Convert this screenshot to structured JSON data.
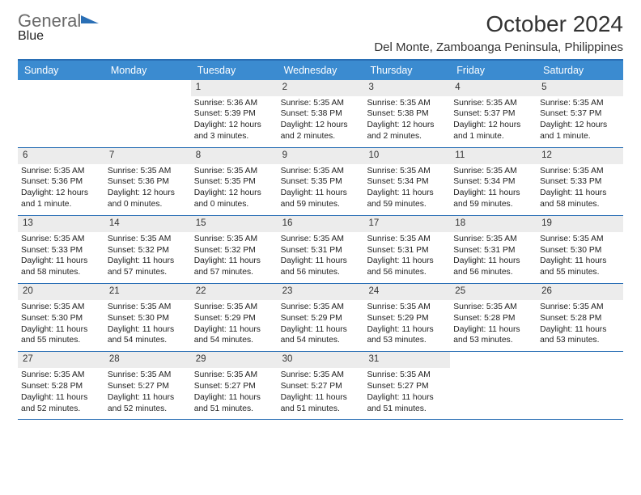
{
  "brand": {
    "name1": "General",
    "name2": "Blue"
  },
  "title": "October 2024",
  "location": "Del Monte, Zamboanga Peninsula, Philippines",
  "colors": {
    "accent": "#3b8bd0",
    "border": "#2a6fb5",
    "shade": "#ececec"
  },
  "dow": [
    "Sunday",
    "Monday",
    "Tuesday",
    "Wednesday",
    "Thursday",
    "Friday",
    "Saturday"
  ],
  "weeks": [
    [
      null,
      null,
      {
        "n": "1",
        "l1": "Sunrise: 5:36 AM",
        "l2": "Sunset: 5:39 PM",
        "l3": "Daylight: 12 hours",
        "l4": "and 3 minutes."
      },
      {
        "n": "2",
        "l1": "Sunrise: 5:35 AM",
        "l2": "Sunset: 5:38 PM",
        "l3": "Daylight: 12 hours",
        "l4": "and 2 minutes."
      },
      {
        "n": "3",
        "l1": "Sunrise: 5:35 AM",
        "l2": "Sunset: 5:38 PM",
        "l3": "Daylight: 12 hours",
        "l4": "and 2 minutes."
      },
      {
        "n": "4",
        "l1": "Sunrise: 5:35 AM",
        "l2": "Sunset: 5:37 PM",
        "l3": "Daylight: 12 hours",
        "l4": "and 1 minute."
      },
      {
        "n": "5",
        "l1": "Sunrise: 5:35 AM",
        "l2": "Sunset: 5:37 PM",
        "l3": "Daylight: 12 hours",
        "l4": "and 1 minute."
      }
    ],
    [
      {
        "n": "6",
        "l1": "Sunrise: 5:35 AM",
        "l2": "Sunset: 5:36 PM",
        "l3": "Daylight: 12 hours",
        "l4": "and 1 minute."
      },
      {
        "n": "7",
        "l1": "Sunrise: 5:35 AM",
        "l2": "Sunset: 5:36 PM",
        "l3": "Daylight: 12 hours",
        "l4": "and 0 minutes."
      },
      {
        "n": "8",
        "l1": "Sunrise: 5:35 AM",
        "l2": "Sunset: 5:35 PM",
        "l3": "Daylight: 12 hours",
        "l4": "and 0 minutes."
      },
      {
        "n": "9",
        "l1": "Sunrise: 5:35 AM",
        "l2": "Sunset: 5:35 PM",
        "l3": "Daylight: 11 hours",
        "l4": "and 59 minutes."
      },
      {
        "n": "10",
        "l1": "Sunrise: 5:35 AM",
        "l2": "Sunset: 5:34 PM",
        "l3": "Daylight: 11 hours",
        "l4": "and 59 minutes."
      },
      {
        "n": "11",
        "l1": "Sunrise: 5:35 AM",
        "l2": "Sunset: 5:34 PM",
        "l3": "Daylight: 11 hours",
        "l4": "and 59 minutes."
      },
      {
        "n": "12",
        "l1": "Sunrise: 5:35 AM",
        "l2": "Sunset: 5:33 PM",
        "l3": "Daylight: 11 hours",
        "l4": "and 58 minutes."
      }
    ],
    [
      {
        "n": "13",
        "l1": "Sunrise: 5:35 AM",
        "l2": "Sunset: 5:33 PM",
        "l3": "Daylight: 11 hours",
        "l4": "and 58 minutes."
      },
      {
        "n": "14",
        "l1": "Sunrise: 5:35 AM",
        "l2": "Sunset: 5:32 PM",
        "l3": "Daylight: 11 hours",
        "l4": "and 57 minutes."
      },
      {
        "n": "15",
        "l1": "Sunrise: 5:35 AM",
        "l2": "Sunset: 5:32 PM",
        "l3": "Daylight: 11 hours",
        "l4": "and 57 minutes."
      },
      {
        "n": "16",
        "l1": "Sunrise: 5:35 AM",
        "l2": "Sunset: 5:31 PM",
        "l3": "Daylight: 11 hours",
        "l4": "and 56 minutes."
      },
      {
        "n": "17",
        "l1": "Sunrise: 5:35 AM",
        "l2": "Sunset: 5:31 PM",
        "l3": "Daylight: 11 hours",
        "l4": "and 56 minutes."
      },
      {
        "n": "18",
        "l1": "Sunrise: 5:35 AM",
        "l2": "Sunset: 5:31 PM",
        "l3": "Daylight: 11 hours",
        "l4": "and 56 minutes."
      },
      {
        "n": "19",
        "l1": "Sunrise: 5:35 AM",
        "l2": "Sunset: 5:30 PM",
        "l3": "Daylight: 11 hours",
        "l4": "and 55 minutes."
      }
    ],
    [
      {
        "n": "20",
        "l1": "Sunrise: 5:35 AM",
        "l2": "Sunset: 5:30 PM",
        "l3": "Daylight: 11 hours",
        "l4": "and 55 minutes."
      },
      {
        "n": "21",
        "l1": "Sunrise: 5:35 AM",
        "l2": "Sunset: 5:30 PM",
        "l3": "Daylight: 11 hours",
        "l4": "and 54 minutes."
      },
      {
        "n": "22",
        "l1": "Sunrise: 5:35 AM",
        "l2": "Sunset: 5:29 PM",
        "l3": "Daylight: 11 hours",
        "l4": "and 54 minutes."
      },
      {
        "n": "23",
        "l1": "Sunrise: 5:35 AM",
        "l2": "Sunset: 5:29 PM",
        "l3": "Daylight: 11 hours",
        "l4": "and 54 minutes."
      },
      {
        "n": "24",
        "l1": "Sunrise: 5:35 AM",
        "l2": "Sunset: 5:29 PM",
        "l3": "Daylight: 11 hours",
        "l4": "and 53 minutes."
      },
      {
        "n": "25",
        "l1": "Sunrise: 5:35 AM",
        "l2": "Sunset: 5:28 PM",
        "l3": "Daylight: 11 hours",
        "l4": "and 53 minutes."
      },
      {
        "n": "26",
        "l1": "Sunrise: 5:35 AM",
        "l2": "Sunset: 5:28 PM",
        "l3": "Daylight: 11 hours",
        "l4": "and 53 minutes."
      }
    ],
    [
      {
        "n": "27",
        "l1": "Sunrise: 5:35 AM",
        "l2": "Sunset: 5:28 PM",
        "l3": "Daylight: 11 hours",
        "l4": "and 52 minutes."
      },
      {
        "n": "28",
        "l1": "Sunrise: 5:35 AM",
        "l2": "Sunset: 5:27 PM",
        "l3": "Daylight: 11 hours",
        "l4": "and 52 minutes."
      },
      {
        "n": "29",
        "l1": "Sunrise: 5:35 AM",
        "l2": "Sunset: 5:27 PM",
        "l3": "Daylight: 11 hours",
        "l4": "and 51 minutes."
      },
      {
        "n": "30",
        "l1": "Sunrise: 5:35 AM",
        "l2": "Sunset: 5:27 PM",
        "l3": "Daylight: 11 hours",
        "l4": "and 51 minutes."
      },
      {
        "n": "31",
        "l1": "Sunrise: 5:35 AM",
        "l2": "Sunset: 5:27 PM",
        "l3": "Daylight: 11 hours",
        "l4": "and 51 minutes."
      },
      null,
      null
    ]
  ]
}
